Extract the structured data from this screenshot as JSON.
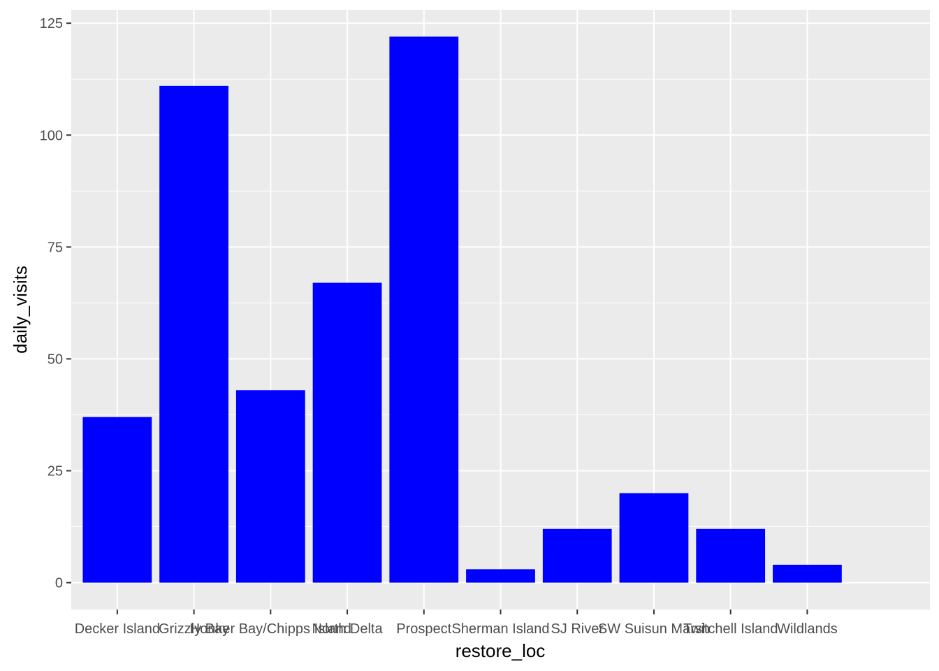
{
  "chart_data": {
    "type": "bar",
    "categories": [
      "Decker Island",
      "Grizzly Bay",
      "Honker Bay/Chipps Island",
      "North Delta",
      "Prospect",
      "Sherman Island",
      "SJ River",
      "SW Suisun Marsh",
      "Twitchell Island",
      "Wildlands"
    ],
    "values": [
      37,
      111,
      43,
      67,
      122,
      3,
      12,
      20,
      12,
      4
    ],
    "xlabel": "restore_loc",
    "ylabel": "daily_visits",
    "ylim": [
      -6,
      128
    ],
    "yticks": [
      0,
      25,
      50,
      75,
      100,
      125
    ],
    "grid": true,
    "bar_color": "#0000ff",
    "panel_color": "#ebebeb",
    "grid_color": "#ffffff"
  }
}
